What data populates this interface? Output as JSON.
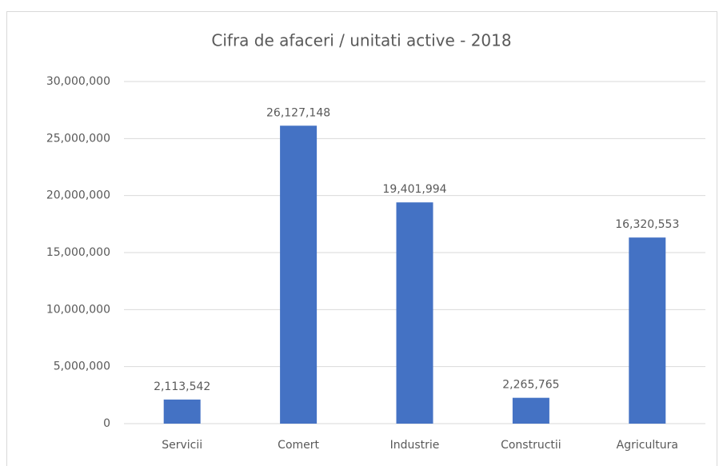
{
  "chart_data": {
    "type": "bar",
    "title": "Cifra de afaceri / unitati active - 2018",
    "categories": [
      "Servicii",
      "Comert",
      "Industrie",
      "Constructii",
      "Agricultura"
    ],
    "values": [
      2113542,
      26127148,
      19401994,
      2265765,
      16320553
    ],
    "value_labels": [
      "2,113,542",
      "26,127,148",
      "19,401,994",
      "2,265,765",
      "16,320,553"
    ],
    "color": "#4472c4",
    "ylim": [
      0,
      30000000
    ],
    "yticks": [
      0,
      {
        "value": 5000000,
        "label": "5,000,000"
      },
      {
        "value": 10000000,
        "label": "10,000,000"
      },
      {
        "value": 15000000,
        "label": "15,000,000"
      },
      {
        "value": 20000000,
        "label": "20,000,000"
      },
      {
        "value": 25000000,
        "label": "25,000,000"
      },
      {
        "value": 30000000,
        "label": "30,000,000"
      }
    ],
    "grid": true
  }
}
